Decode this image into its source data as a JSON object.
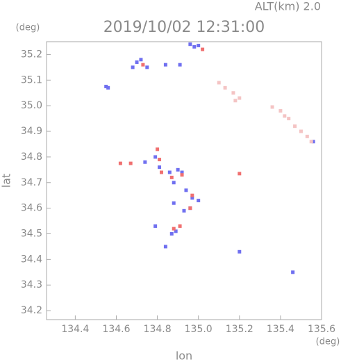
{
  "chart_data": {
    "type": "scatter",
    "title": "2019/10/02 12:31:00",
    "annotation": "ALT(km) 2.0",
    "y_unit": "(deg)",
    "x_unit": "(deg)",
    "ylabel": "lat",
    "xlabel": "lon",
    "xlim": [
      134.26,
      135.6
    ],
    "ylim": [
      34.165,
      35.25
    ],
    "xticks": [
      134.4,
      134.6,
      134.8,
      {
        "value": 135,
        "label": "135.0"
      },
      135.2,
      135.4,
      135.6
    ],
    "yticks": [
      34.2,
      34.3,
      34.4,
      34.5,
      34.6,
      34.7,
      34.8,
      34.9,
      {
        "value": 35,
        "label": "35.0"
      },
      35.1,
      35.2
    ],
    "series": [
      {
        "color": "#7070f0",
        "x": [
          134.55,
          134.56,
          134.68,
          134.7,
          134.72,
          134.75,
          134.84,
          134.91,
          134.96,
          134.98,
          135.0,
          134.74,
          134.79,
          134.81,
          134.86,
          134.88,
          134.9,
          134.92,
          134.94,
          134.97,
          135.0,
          134.96,
          134.93,
          134.87,
          134.89,
          134.84,
          134.79,
          135.46,
          135.56,
          135.2,
          134.88
        ],
        "values": [
          35.075,
          35.07,
          35.15,
          35.17,
          35.18,
          35.15,
          35.16,
          35.16,
          35.24,
          35.23,
          35.235,
          34.78,
          34.8,
          34.76,
          34.74,
          34.7,
          34.75,
          34.74,
          34.67,
          34.64,
          34.63,
          34.6,
          34.59,
          34.5,
          34.51,
          34.45,
          34.53,
          34.35,
          34.86,
          34.43,
          34.62
        ]
      },
      {
        "color": "#f07070",
        "x": [
          134.62,
          134.67,
          134.8,
          134.81,
          134.82,
          134.87,
          134.92,
          134.97,
          134.96,
          134.88,
          134.91,
          135.2,
          134.73,
          135.02
        ],
        "values": [
          34.775,
          34.775,
          34.83,
          34.79,
          34.74,
          34.72,
          34.73,
          34.65,
          34.6,
          34.52,
          34.53,
          34.735,
          35.16,
          35.22
        ]
      },
      {
        "color": "#f4c4c4",
        "x": [
          135.1,
          135.13,
          135.17,
          135.2,
          135.18,
          135.36,
          135.4,
          135.44,
          135.47,
          135.5,
          135.53,
          135.55,
          135.42
        ],
        "values": [
          35.09,
          35.07,
          35.05,
          35.03,
          35.02,
          34.995,
          34.98,
          34.95,
          34.92,
          34.9,
          34.88,
          34.86,
          34.96
        ]
      }
    ]
  }
}
